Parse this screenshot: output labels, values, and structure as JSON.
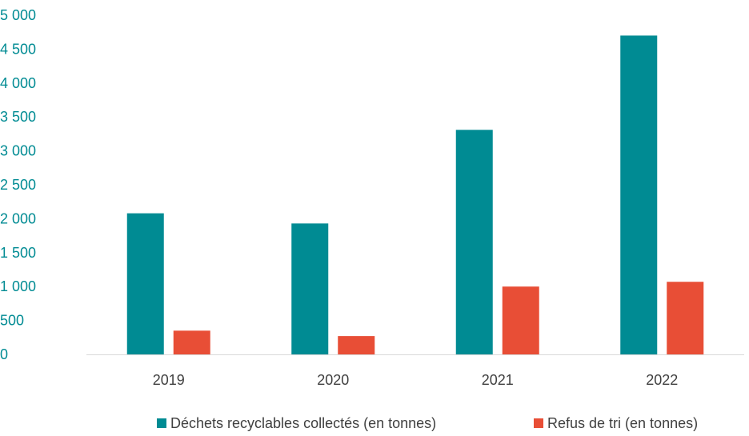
{
  "chart_data": {
    "type": "bar",
    "categories": [
      "2019",
      "2020",
      "2021",
      "2022"
    ],
    "series": [
      {
        "name": "Déchets recyclables collectés (en tonnes)",
        "values": [
          2080,
          1930,
          3310,
          4700
        ],
        "color": "#008b93"
      },
      {
        "name": "Refus de tri (en tonnes)",
        "values": [
          350,
          270,
          1000,
          1070
        ],
        "color": "#e84e36"
      }
    ],
    "y_ticks": [
      "0",
      "500",
      "1 000",
      "1 500",
      "2 000",
      "2 500",
      "3 000",
      "3 500",
      "4 000",
      "4 500",
      "5 000"
    ],
    "ylim": [
      0,
      5000
    ],
    "ytick_step": 500,
    "grid": false,
    "legend_position": "bottom-right",
    "title": "",
    "xlabel": "",
    "ylabel": ""
  }
}
